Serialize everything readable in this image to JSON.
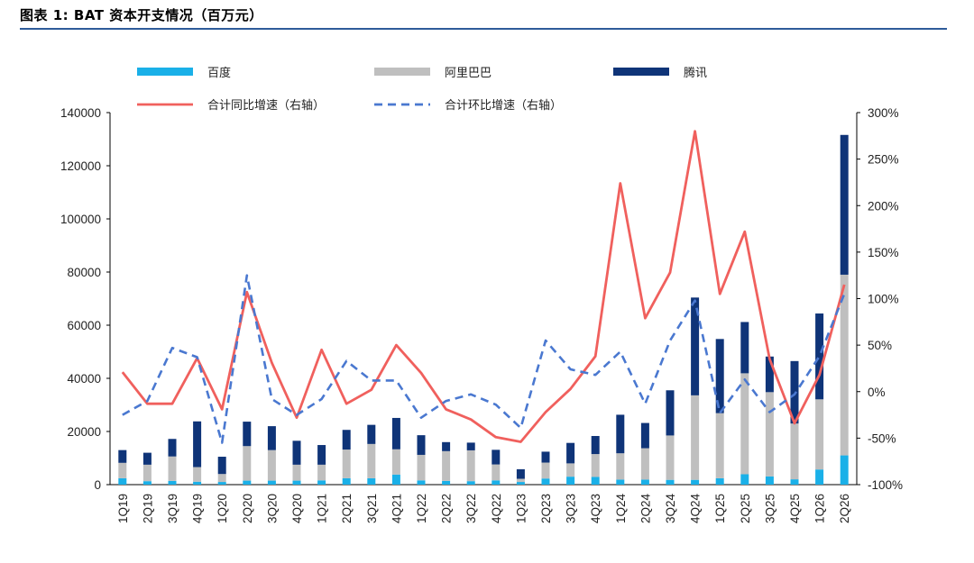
{
  "title": "图表 1:  BAT 资本开支情况（百万元）",
  "chart_data": {
    "type": "bar",
    "stacked": true,
    "categories": [
      "1Q19",
      "2Q19",
      "3Q19",
      "4Q19",
      "1Q20",
      "2Q20",
      "3Q20",
      "4Q20",
      "1Q21",
      "2Q21",
      "3Q21",
      "4Q21",
      "1Q22",
      "2Q22",
      "3Q22",
      "4Q22",
      "1Q23",
      "2Q23",
      "3Q23",
      "4Q23",
      "1Q24",
      "2Q24",
      "3Q24",
      "4Q24",
      "1Q25",
      "2Q25",
      "3Q25",
      "4Q25",
      "1Q26",
      "2Q26"
    ],
    "series": [
      {
        "name": "百度",
        "color": "#1ab0e8",
        "axis": "left",
        "values": [
          2400,
          1300,
          1400,
          1100,
          1000,
          1500,
          1500,
          1500,
          1600,
          2400,
          2400,
          3800,
          1600,
          1400,
          1300,
          1600,
          1000,
          2300,
          3000,
          2900,
          1900,
          1900,
          1800,
          1800,
          2400,
          3900,
          3100,
          2000,
          5700,
          11000
        ]
      },
      {
        "name": "阿里巴巴",
        "color": "#bfbfbf",
        "axis": "left",
        "values": [
          5800,
          6200,
          9200,
          5500,
          3000,
          13000,
          11500,
          6000,
          5900,
          10800,
          12900,
          9500,
          9600,
          11200,
          11600,
          6000,
          1200,
          6000,
          5000,
          8600,
          9900,
          11800,
          16700,
          31800,
          24500,
          38000,
          31700,
          21000,
          26400,
          68000
        ]
      },
      {
        "name": "腾讯",
        "color": "#0f3478",
        "axis": "left",
        "values": [
          4800,
          4500,
          6600,
          17200,
          6500,
          9200,
          9000,
          9000,
          7400,
          7400,
          7200,
          11800,
          7400,
          3400,
          2900,
          5500,
          3600,
          4100,
          7700,
          6800,
          14500,
          9500,
          17000,
          36800,
          27900,
          19300,
          13400,
          23500,
          32300,
          52600
        ]
      },
      {
        "name": "合计同比增速（右轴）",
        "color": "#f0605d",
        "axis": "right",
        "style": "solid",
        "values": [
          21,
          -13,
          -13,
          36,
          -19,
          107,
          31,
          -28,
          45,
          -13,
          2,
          50,
          20,
          -19,
          -30,
          -49,
          -54,
          -22,
          3,
          38,
          224,
          79,
          128,
          280,
          105,
          172,
          35,
          -34,
          18,
          115
        ]
      },
      {
        "name": "合计环比增速（右轴）",
        "color": "#4a78d0",
        "axis": "right",
        "style": "dashed",
        "values": [
          -25,
          -10,
          47,
          37,
          -55,
          125,
          -8,
          -25,
          -8,
          33,
          12,
          12,
          -28,
          -10,
          -3,
          -14,
          -39,
          55,
          24,
          18,
          43,
          -13,
          55,
          98,
          -23,
          13,
          -22,
          -3,
          38,
          105
        ]
      }
    ],
    "y_left": {
      "min": 0,
      "max": 140000,
      "ticks": [
        "0",
        "20000",
        "40000",
        "60000",
        "80000",
        "100000",
        "120000",
        "140000"
      ]
    },
    "y_right": {
      "min": -100,
      "max": 300,
      "ticks": [
        "-100%",
        "-50%",
        "0%",
        "50%",
        "100%",
        "150%",
        "200%",
        "250%",
        "300%"
      ]
    },
    "legend_position": "top",
    "grid": false
  }
}
